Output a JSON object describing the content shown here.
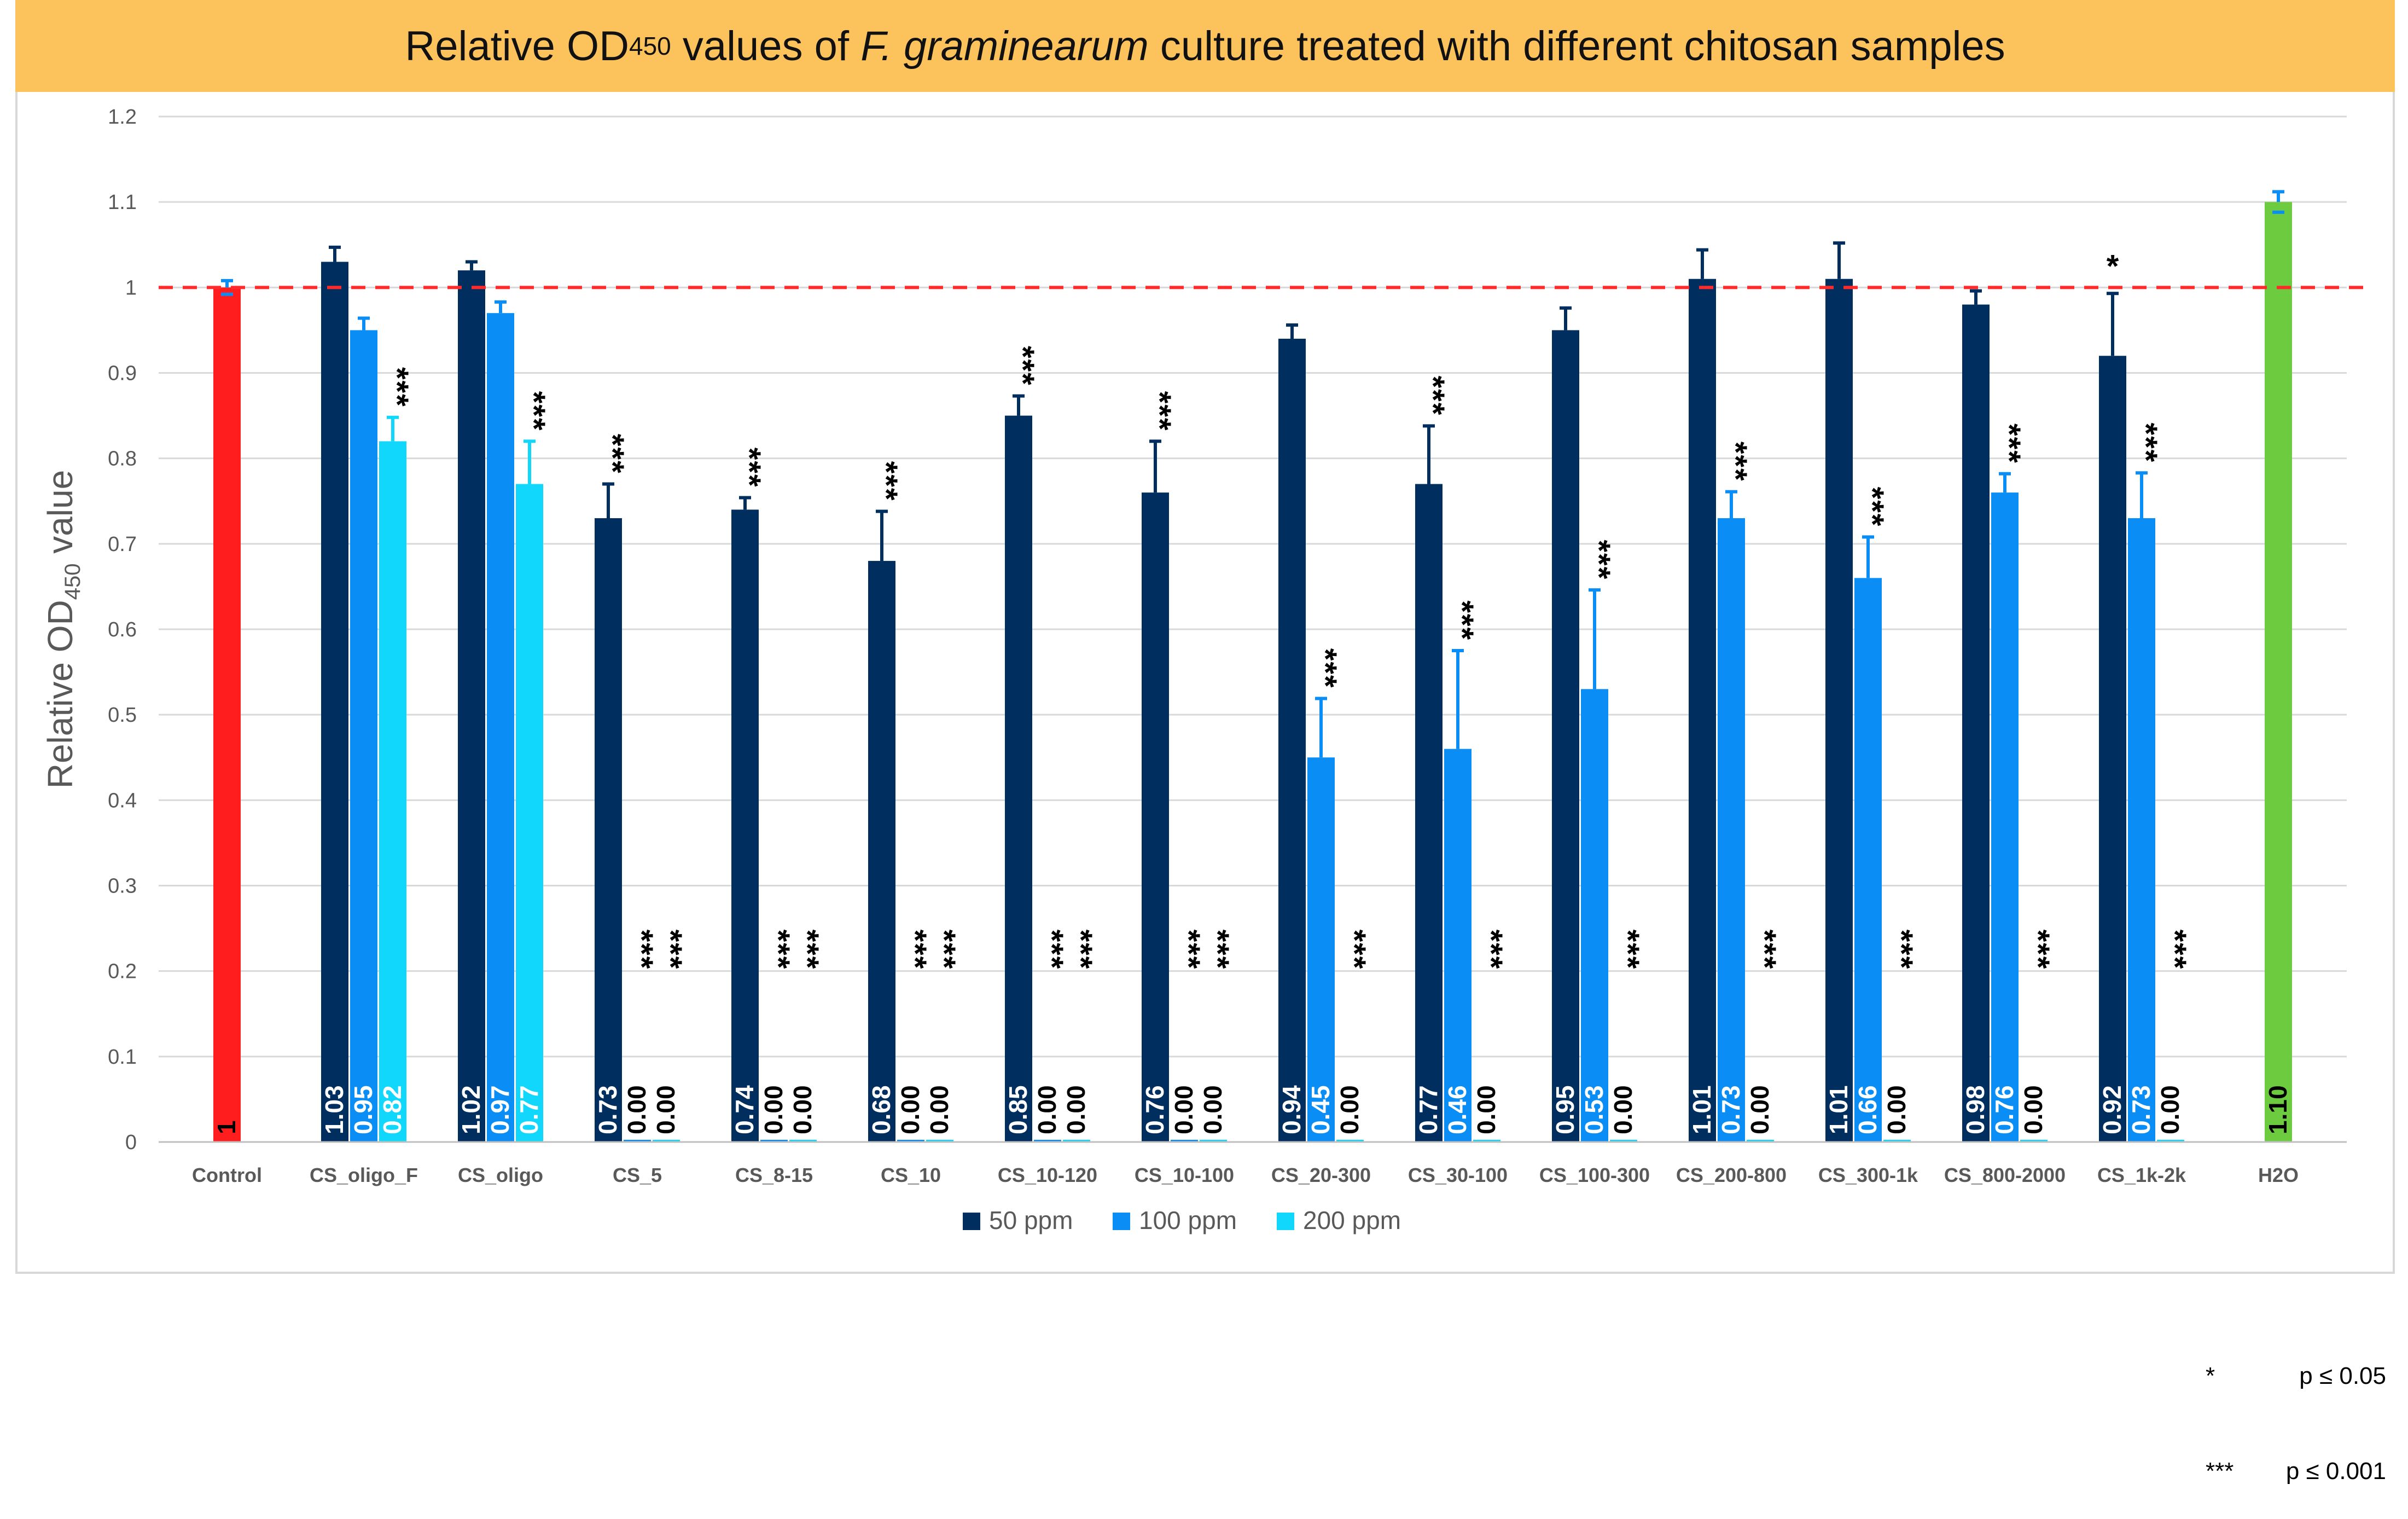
{
  "title": {
    "prefix": "Relative OD",
    "subscript": "450",
    "middle": " values of ",
    "italic": "F. graminearum",
    "suffix": " culture treated with different chitosan samples"
  },
  "footnote": {
    "rows": [
      {
        "symbol": "*",
        "text": "p ≤ 0.05"
      },
      {
        "symbol": "***",
        "text": "p ≤ 0.001"
      }
    ]
  },
  "chart_data": {
    "type": "bar",
    "ylabel": {
      "prefix": "Relative OD",
      "subscript": "450",
      "suffix": " value"
    },
    "xlabel": "",
    "ylim": [
      0,
      1.2
    ],
    "yticks": [
      "0",
      "0.1",
      "0.2",
      "0.3",
      "0.4",
      "0.5",
      "0.6",
      "0.7",
      "0.8",
      "0.9",
      "1",
      "1.1",
      "1.2"
    ],
    "grid": true,
    "reference_line": {
      "value": 1.0,
      "color": "#ff2a2a",
      "style": "dashed"
    },
    "legend_position": "bottom-center",
    "categories": [
      "Control",
      "CS_oligo_F",
      "CS_oligo",
      "CS_5",
      "CS_8-15",
      "CS_10",
      "CS_10-120",
      "CS_10-100",
      "CS_20-300",
      "CS_30-100",
      "CS_100-300",
      "CS_200-800",
      "CS_300-1k",
      "CS_800-2000",
      "CS_1k-2k",
      "H2O"
    ],
    "series": [
      {
        "name": "50 ppm",
        "color": "#002e5e",
        "values": [
          null,
          1.03,
          1.02,
          0.73,
          0.74,
          0.68,
          0.85,
          0.76,
          0.94,
          0.77,
          0.95,
          1.01,
          1.01,
          0.98,
          0.92,
          null
        ],
        "labels": [
          null,
          "1.03",
          "1.02",
          "0.73",
          "0.74",
          "0.68",
          "0.85",
          "0.76",
          "0.94",
          "0.77",
          "0.95",
          "1.01",
          "1.01",
          "0.98",
          "0.92",
          null
        ],
        "errors": [
          null,
          0.017,
          0.01,
          0.04,
          0.014,
          0.058,
          0.023,
          0.06,
          0.016,
          0.068,
          0.026,
          0.034,
          0.042,
          0.016,
          0.073,
          null
        ],
        "sig": [
          null,
          "",
          "",
          "***",
          "***",
          "***",
          "***",
          "***",
          "",
          "***",
          "",
          "",
          "",
          "",
          "*",
          null
        ]
      },
      {
        "name": "100 ppm",
        "color": "#0a8ef5",
        "values": [
          null,
          0.95,
          0.97,
          0.0,
          0.0,
          0.0,
          0.0,
          0.0,
          0.45,
          0.46,
          0.53,
          0.73,
          0.66,
          0.76,
          0.73,
          null
        ],
        "labels": [
          null,
          "0.95",
          "0.97",
          "0.00",
          "0.00",
          "0.00",
          "0.00",
          "0.00",
          "0.45",
          "0.46",
          "0.53",
          "0.73",
          "0.66",
          "0.76",
          "0.73",
          null
        ],
        "errors": [
          null,
          0.014,
          0.013,
          0,
          0,
          0,
          0,
          0,
          0.069,
          0.115,
          0.116,
          0.031,
          0.048,
          0.022,
          0.053,
          null
        ],
        "sig": [
          null,
          "",
          "",
          "***",
          "***",
          "***",
          "***",
          "***",
          "***",
          "***",
          "***",
          "***",
          "***",
          "***",
          "***",
          null
        ]
      },
      {
        "name": "200 ppm",
        "color": "#11d7fc",
        "values": [
          null,
          0.82,
          0.77,
          0.0,
          0.0,
          0.0,
          0.0,
          0.0,
          0.0,
          0.0,
          0.0,
          0.0,
          0.0,
          0.0,
          0.0,
          null
        ],
        "labels": [
          null,
          "0.82",
          "0.77",
          "0.00",
          "0.00",
          "0.00",
          "0.00",
          "0.00",
          "0.00",
          "0.00",
          "0.00",
          "0.00",
          "0.00",
          "0.00",
          "0.00",
          null
        ],
        "errors": [
          null,
          0.028,
          0.05,
          0,
          0,
          0,
          0,
          0,
          0,
          0,
          0,
          0,
          0,
          0,
          0,
          null
        ],
        "sig": [
          null,
          "***",
          "***",
          "***",
          "***",
          "***",
          "***",
          "***",
          "***",
          "***",
          "***",
          "***",
          "***",
          "***",
          "***",
          null
        ]
      }
    ],
    "single_bars": [
      {
        "category": "Control",
        "value": 1.0,
        "label": "1",
        "error": 0.008,
        "color": "#ff1d1d",
        "error_color": "#0a8ef5"
      },
      {
        "category": "H2O",
        "value": 1.1,
        "label": "1.10",
        "error": 0.012,
        "color": "#6ccb3f",
        "error_color": "#0a8ef5"
      }
    ]
  }
}
